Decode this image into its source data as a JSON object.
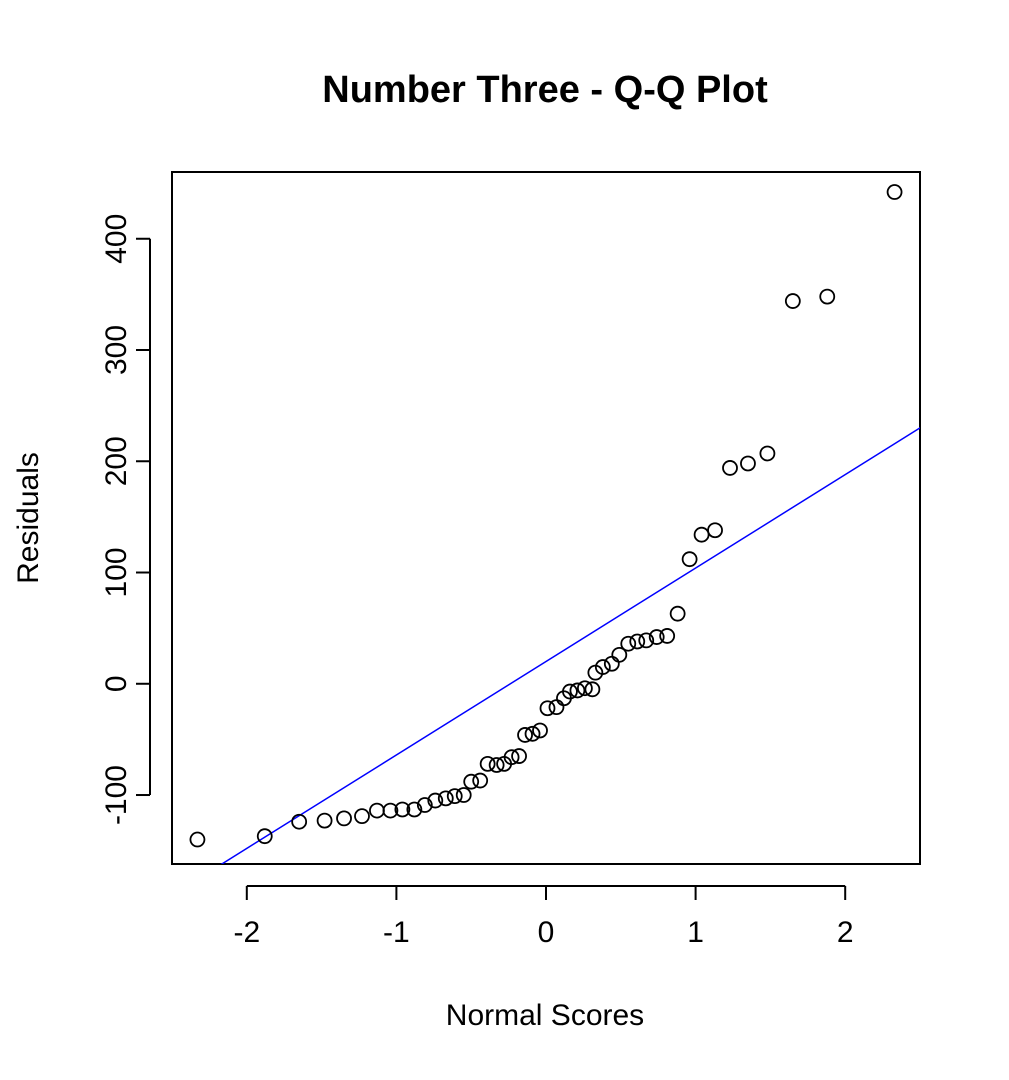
{
  "chart_data": {
    "type": "scatter",
    "title": "Number Three - Q-Q Plot",
    "xlabel": "Normal Scores",
    "ylabel": "Residuals",
    "xlim": [
      -2.5,
      2.5
    ],
    "ylim": [
      -162,
      460
    ],
    "x_ticks": [
      -2,
      -1,
      0,
      1,
      2
    ],
    "x_tick_labels": [
      "-2",
      "-1",
      "0",
      "1",
      "2"
    ],
    "y_ticks": [
      -100,
      0,
      100,
      200,
      300,
      400
    ],
    "y_tick_labels": [
      "-100",
      "0",
      "100",
      "200",
      "300",
      "400"
    ],
    "grid": false,
    "reference_line": {
      "intercept": 20,
      "slope": 84,
      "color": "#0000ff"
    },
    "point_color": "#000000",
    "points": [
      {
        "x": -2.33,
        "y": -140
      },
      {
        "x": -1.88,
        "y": -137
      },
      {
        "x": -1.65,
        "y": -124
      },
      {
        "x": -1.48,
        "y": -123
      },
      {
        "x": -1.35,
        "y": -121
      },
      {
        "x": -1.23,
        "y": -119
      },
      {
        "x": -1.13,
        "y": -114
      },
      {
        "x": -1.04,
        "y": -114
      },
      {
        "x": -0.96,
        "y": -113
      },
      {
        "x": -0.88,
        "y": -113
      },
      {
        "x": -0.81,
        "y": -109
      },
      {
        "x": -0.74,
        "y": -105
      },
      {
        "x": -0.67,
        "y": -103
      },
      {
        "x": -0.61,
        "y": -101
      },
      {
        "x": -0.55,
        "y": -100
      },
      {
        "x": -0.5,
        "y": -88
      },
      {
        "x": -0.44,
        "y": -87
      },
      {
        "x": -0.39,
        "y": -72
      },
      {
        "x": -0.33,
        "y": -73
      },
      {
        "x": -0.28,
        "y": -72
      },
      {
        "x": -0.23,
        "y": -66
      },
      {
        "x": -0.18,
        "y": -65
      },
      {
        "x": -0.14,
        "y": -46
      },
      {
        "x": -0.09,
        "y": -45
      },
      {
        "x": -0.04,
        "y": -42
      },
      {
        "x": 0.01,
        "y": -22
      },
      {
        "x": 0.07,
        "y": -21
      },
      {
        "x": 0.12,
        "y": -13
      },
      {
        "x": 0.16,
        "y": -7
      },
      {
        "x": 0.21,
        "y": -6
      },
      {
        "x": 0.26,
        "y": -4
      },
      {
        "x": 0.31,
        "y": -5
      },
      {
        "x": 0.33,
        "y": 10
      },
      {
        "x": 0.38,
        "y": 15
      },
      {
        "x": 0.44,
        "y": 18
      },
      {
        "x": 0.49,
        "y": 26
      },
      {
        "x": 0.55,
        "y": 36
      },
      {
        "x": 0.61,
        "y": 38
      },
      {
        "x": 0.67,
        "y": 39
      },
      {
        "x": 0.74,
        "y": 42
      },
      {
        "x": 0.81,
        "y": 43
      },
      {
        "x": 0.88,
        "y": 63
      },
      {
        "x": 0.96,
        "y": 112
      },
      {
        "x": 1.04,
        "y": 134
      },
      {
        "x": 1.13,
        "y": 138
      },
      {
        "x": 1.23,
        "y": 194
      },
      {
        "x": 1.35,
        "y": 198
      },
      {
        "x": 1.48,
        "y": 207
      },
      {
        "x": 1.65,
        "y": 344
      },
      {
        "x": 1.88,
        "y": 348
      },
      {
        "x": 2.33,
        "y": 442
      }
    ]
  }
}
